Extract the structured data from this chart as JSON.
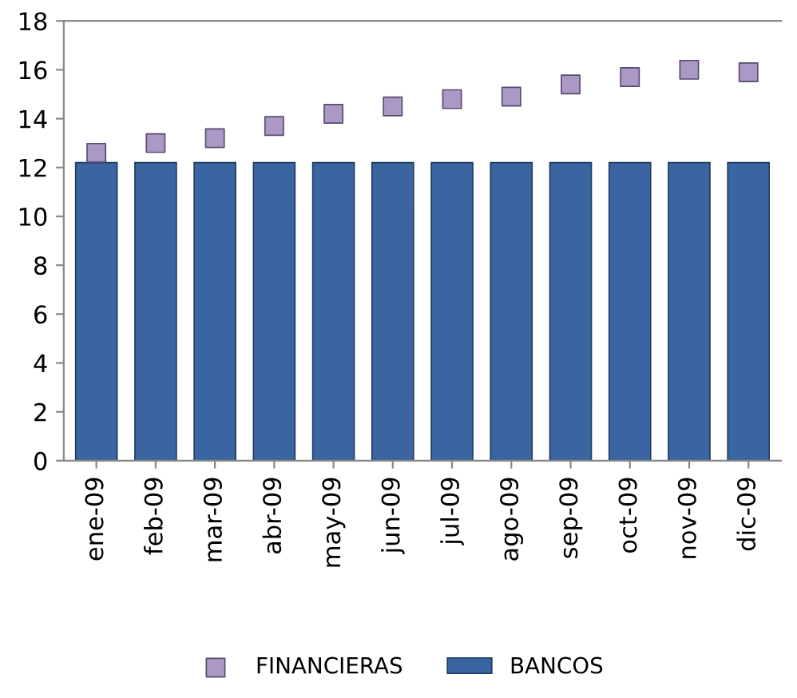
{
  "chart_data": {
    "type": "bar",
    "categories": [
      "ene-09",
      "feb-09",
      "mar-09",
      "abr-09",
      "may-09",
      "jun-09",
      "jul-09",
      "ago-09",
      "sep-09",
      "oct-09",
      "nov-09",
      "dic-09"
    ],
    "series": [
      {
        "name": "FINANCIERAS",
        "type": "scatter",
        "marker": "square",
        "color": "#a999c4",
        "values": [
          12.6,
          13.0,
          13.2,
          13.7,
          14.2,
          14.5,
          14.8,
          14.9,
          15.4,
          15.7,
          16.0,
          15.9
        ]
      },
      {
        "name": "BANCOS",
        "color": "#3b65a0",
        "values": [
          12.2,
          12.2,
          12.2,
          12.2,
          12.2,
          12.2,
          12.2,
          12.2,
          12.2,
          12.2,
          12.2,
          12.2
        ]
      }
    ],
    "ylim": [
      0,
      18
    ],
    "yticks": [
      0,
      2,
      4,
      6,
      8,
      10,
      12,
      14,
      16,
      18
    ],
    "grid": false,
    "legend": "bottom"
  }
}
